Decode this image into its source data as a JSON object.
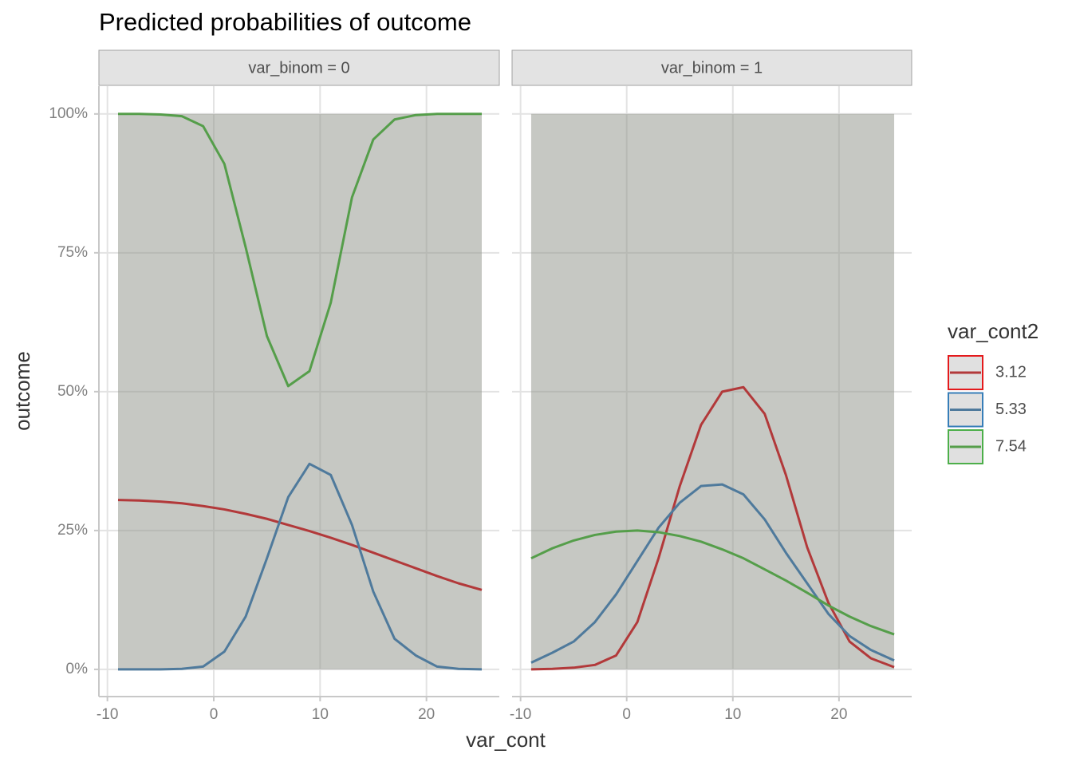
{
  "chart_data": {
    "type": "line",
    "title": "Predicted probabilities of outcome",
    "x_label": "var_cont",
    "y_label": "outcome",
    "legend_title": "var_cont2",
    "xlim": [
      -10.8,
      26.85
    ],
    "xticks": [
      -10,
      0,
      10,
      20
    ],
    "ylim": [
      -4.9,
      105
    ],
    "yticks": [
      {
        "value": 0,
        "label": "0%"
      },
      {
        "value": 25,
        "label": "25%"
      },
      {
        "value": 50,
        "label": "50%"
      },
      {
        "value": 75,
        "label": "75%"
      },
      {
        "value": 100,
        "label": "100%"
      }
    ],
    "grid": true,
    "ribbon": {
      "lower": 0,
      "upper": 100,
      "color": "#8e9287"
    },
    "x": [
      -9,
      -7,
      -5,
      -3,
      -1,
      1,
      3,
      5,
      7,
      9,
      11,
      13,
      15,
      17,
      19,
      21,
      23,
      25.2
    ],
    "legend": [
      {
        "name": "3.12",
        "color": "#b2393a",
        "key_color": "#e41a1c"
      },
      {
        "name": "5.33",
        "color": "#4f7a9c",
        "key_color": "#377eb8"
      },
      {
        "name": "7.54",
        "color": "#559e4a",
        "key_color": "#4daf4a"
      }
    ],
    "facets": [
      {
        "strip": "var_binom = 0",
        "series": [
          {
            "values": [
              30.5,
              30.4,
              30.2,
              29.9,
              29.4,
              28.8,
              28,
              27.1,
              26,
              24.9,
              23.7,
              22.4,
              21,
              19.6,
              18.2,
              16.8,
              15.5,
              14.3
            ]
          },
          {
            "values": [
              0,
              0,
              0,
              0.1,
              0.5,
              3.2,
              9.5,
              20,
              31,
              37,
              35,
              26,
              14,
              5.5,
              2.5,
              0.5,
              0.1,
              0
            ]
          },
          {
            "values": [
              100,
              100,
              99.9,
              99.6,
              97.8,
              91,
              76,
              60,
              51,
              53.7,
              66,
              85,
              95.4,
              99,
              99.8,
              100,
              100,
              100
            ]
          }
        ]
      },
      {
        "strip": "var_binom = 1",
        "series": [
          {
            "values": [
              0,
              0.1,
              0.3,
              0.8,
              2.5,
              8.5,
              20,
              33,
              44,
              50,
              50.8,
              46,
              35,
              22,
              12,
              5,
              2,
              0.4
            ]
          },
          {
            "values": [
              1.2,
              3,
              5,
              8.5,
              13.5,
              19.5,
              25.5,
              30,
              33,
              33.3,
              31.5,
              27,
              21,
              15.5,
              10,
              6,
              3.5,
              1.6
            ]
          },
          {
            "values": [
              20,
              21.8,
              23.2,
              24.2,
              24.8,
              25,
              24.7,
              24,
              23,
              21.6,
              20,
              18,
              16,
              13.8,
              11.5,
              9.5,
              7.8,
              6.3
            ]
          }
        ]
      }
    ]
  }
}
